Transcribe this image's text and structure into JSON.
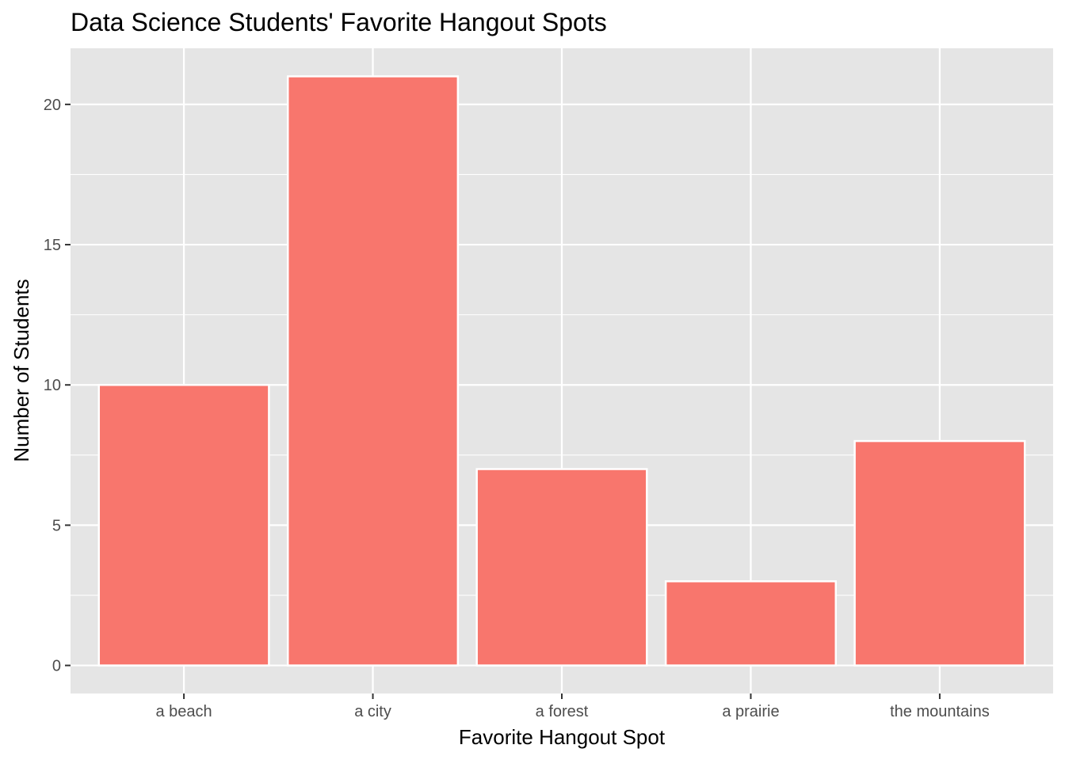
{
  "chart_data": {
    "type": "bar",
    "title": "Data Science Students' Favorite Hangout Spots",
    "xlabel": "Favorite Hangout Spot",
    "ylabel": "Number of Students",
    "categories": [
      "a beach",
      "a city",
      "a forest",
      "a prairie",
      "the mountains"
    ],
    "values": [
      10,
      21,
      7,
      3,
      8
    ],
    "ylim": [
      -1,
      22
    ],
    "yticks": [
      0,
      5,
      10,
      15,
      20
    ],
    "grid": true,
    "legend": "none",
    "colors": {
      "bar_fill": "#F8766D",
      "bar_outline": "#FFFFFF",
      "panel_background": "#E5E5E5",
      "grid_line": "#FFFFFF",
      "tick_text": "#4D4D4D"
    }
  }
}
